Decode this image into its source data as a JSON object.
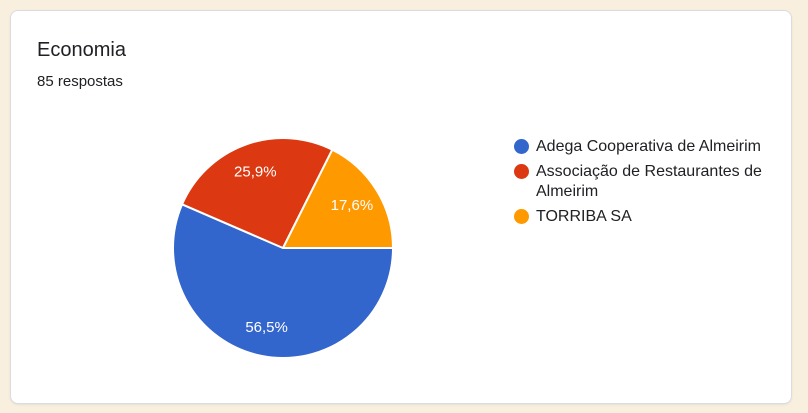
{
  "page": {
    "background_color": "#F8EFDE",
    "card_background_color": "#FFFFFF",
    "card_border_color": "#DADCE0",
    "text_color": "#202124"
  },
  "card": {
    "title": "Economia",
    "subtitle": "85 respostas"
  },
  "chart_data": {
    "type": "pie",
    "title": "Economia",
    "responses_text": "85 respostas",
    "start_angle_deg": 0,
    "direction": "clockwise",
    "legend_position": "right",
    "slice_label_color": "#FFFFFF",
    "slices": [
      {
        "label": "Adega Cooperativa de Almeirim",
        "percent": 56.5,
        "display": "56,5%",
        "color": "#3366CC"
      },
      {
        "label": "Associação de Restaurantes de Almeirim",
        "percent": 25.9,
        "display": "25,9%",
        "color": "#DC3912"
      },
      {
        "label": "TORRIBA SA",
        "percent": 17.6,
        "display": "17,6%",
        "color": "#FF9900"
      }
    ]
  }
}
